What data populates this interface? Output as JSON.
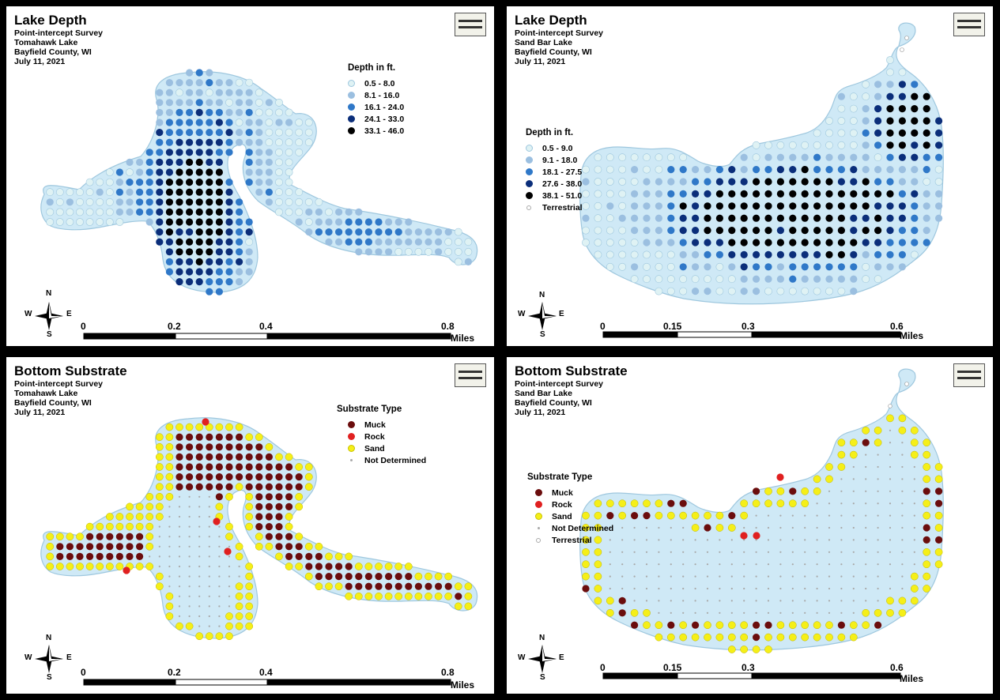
{
  "colors": {
    "lake_fill": "#cfe9f6",
    "lake_stroke": "#9ec7de",
    "depth": [
      "#dff2f4",
      "#9bbfe0",
      "#2f78c8",
      "#0b2e7a",
      "#000000"
    ],
    "muck": "#6b0d0d",
    "rock": "#e02020",
    "sand": "#f5ef18",
    "not_determined": "#a9a9a9",
    "terrestrial": "#ffffff"
  },
  "panels": [
    {
      "kind": "depth",
      "title": "Lake Depth",
      "subtitle": [
        "Point-intercept Survey",
        "Tomahawk Lake",
        "Bayfield County, WI",
        "July 11, 2021"
      ],
      "legend_title": "Depth in ft.",
      "legend_items": [
        {
          "label": "0.5 -   8.0",
          "color": "#dff2f4"
        },
        {
          "label": "8.1 - 16.0",
          "color": "#9bbfe0"
        },
        {
          "label": "16.1 - 24.0",
          "color": "#2f78c8"
        },
        {
          "label": "24.1 - 33.0",
          "color": "#0b2e7a"
        },
        {
          "label": "33.1 - 46.0",
          "color": "#000000"
        }
      ],
      "scale_labels": [
        "0",
        "0.2",
        "0.4",
        "0.8"
      ],
      "scale_unit": "Miles",
      "compass": {
        "n": "N",
        "s": "S",
        "e": "E",
        "w": "W"
      }
    },
    {
      "kind": "depth",
      "title": "Lake Depth",
      "subtitle": [
        "Point-intercept Survey",
        "Sand Bar Lake",
        "Bayfield County, WI",
        "July 11, 2021"
      ],
      "legend_title": "Depth in ft.",
      "legend_items": [
        {
          "label": "0.5 -   9.0",
          "color": "#dff2f4"
        },
        {
          "label": "9.1 - 18.0",
          "color": "#9bbfe0"
        },
        {
          "label": "18.1 - 27.5",
          "color": "#2f78c8"
        },
        {
          "label": "27.6 - 38.0",
          "color": "#0b2e7a"
        },
        {
          "label": "38.1 - 51.0",
          "color": "#000000"
        },
        {
          "label": "Terrestrial",
          "color": "#ffffff"
        }
      ],
      "scale_labels": [
        "0",
        "0.15",
        "0.3",
        "0.6"
      ],
      "scale_unit": "Miles",
      "compass": {
        "n": "N",
        "s": "S",
        "e": "E",
        "w": "W"
      }
    },
    {
      "kind": "substrate",
      "title": "Bottom Substrate",
      "subtitle": [
        "Point-intercept Survey",
        "Tomahawk Lake",
        "Bayfield County, WI",
        "July 11, 2021"
      ],
      "legend_title": "Substrate Type",
      "legend_items": [
        {
          "label": "Muck",
          "color": "#6b0d0d"
        },
        {
          "label": "Rock",
          "color": "#e02020"
        },
        {
          "label": "Sand",
          "color": "#f5ef18"
        },
        {
          "label": "Not Determined",
          "color": "#a9a9a9"
        }
      ],
      "scale_labels": [
        "0",
        "0.2",
        "0.4",
        "0.8"
      ],
      "scale_unit": "Miles",
      "compass": {
        "n": "N",
        "s": "S",
        "e": "E",
        "w": "W"
      }
    },
    {
      "kind": "substrate",
      "title": "Bottom Substrate",
      "subtitle": [
        "Point-intercept Survey",
        "Sand Bar Lake",
        "Bayfield County, WI",
        "July 11, 2021"
      ],
      "legend_title": "Substrate Type",
      "legend_items": [
        {
          "label": "Muck",
          "color": "#6b0d0d"
        },
        {
          "label": "Rock",
          "color": "#e02020"
        },
        {
          "label": "Sand",
          "color": "#f5ef18"
        },
        {
          "label": "Not Determined",
          "color": "#a9a9a9"
        },
        {
          "label": "Terrestrial",
          "color": "#ffffff"
        }
      ],
      "scale_labels": [
        "0",
        "0.15",
        "0.3",
        "0.6"
      ],
      "scale_unit": "Miles",
      "compass": {
        "n": "N",
        "s": "S",
        "e": "E",
        "w": "W"
      }
    }
  ]
}
